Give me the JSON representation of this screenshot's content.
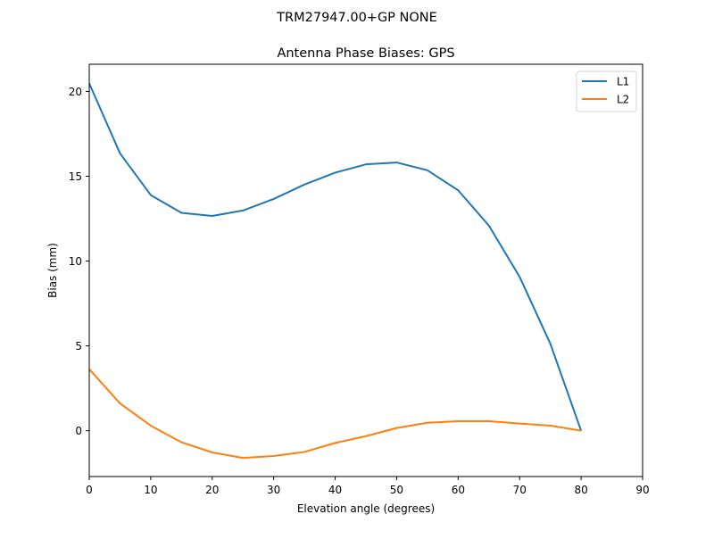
{
  "figure": {
    "suptitle": "TRM27947.00+GP  NONE",
    "title": "Antenna Phase Biases: GPS"
  },
  "chart_data": {
    "type": "line",
    "title": "Antenna Phase Biases: GPS",
    "suptitle": "TRM27947.00+GP  NONE",
    "xlabel": "Elevation angle (degrees)",
    "ylabel": "Bias (mm)",
    "xlim": [
      0,
      90
    ],
    "ylim": [
      -2.7,
      21.6
    ],
    "xticks": [
      0,
      10,
      20,
      30,
      40,
      50,
      60,
      70,
      80,
      90
    ],
    "yticks": [
      0,
      5,
      10,
      15,
      20
    ],
    "grid": false,
    "legend_position": "upper right",
    "x": [
      0,
      5,
      10,
      15,
      20,
      25,
      30,
      35,
      40,
      45,
      50,
      55,
      60,
      65,
      70,
      75,
      80
    ],
    "series": [
      {
        "name": "L1",
        "color": "#1f77b4",
        "values": [
          20.47,
          16.35,
          13.89,
          12.84,
          12.66,
          12.98,
          13.66,
          14.51,
          15.21,
          15.7,
          15.81,
          15.35,
          14.17,
          12.09,
          9.07,
          5.12,
          0.0
        ]
      },
      {
        "name": "L2",
        "color": "#ff7f0e",
        "values": [
          3.63,
          1.61,
          0.3,
          -0.68,
          -1.28,
          -1.6,
          -1.49,
          -1.25,
          -0.72,
          -0.32,
          0.16,
          0.47,
          0.56,
          0.56,
          0.42,
          0.3,
          0.0
        ]
      }
    ]
  }
}
